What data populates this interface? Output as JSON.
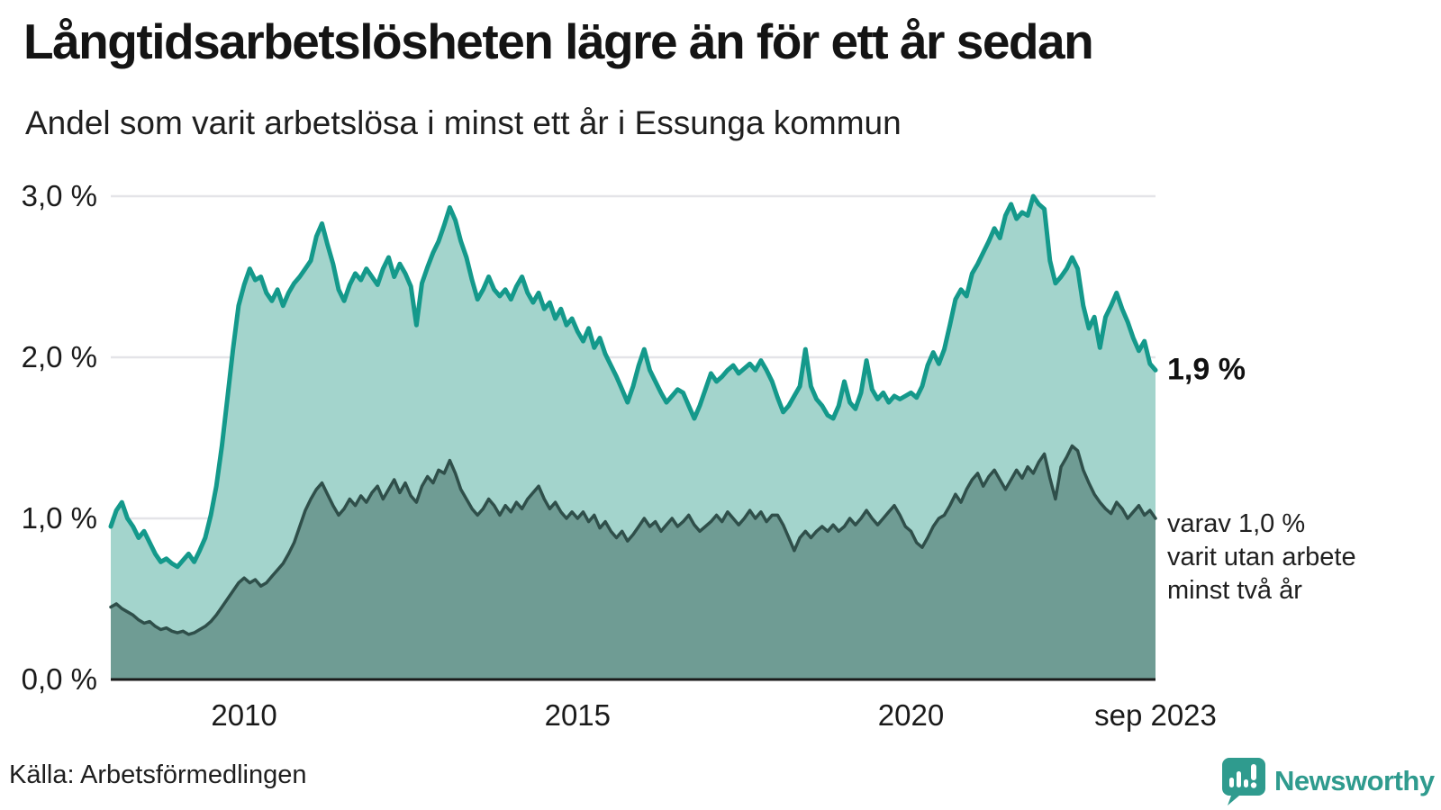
{
  "header": {
    "title": "Långtidsarbetslösheten lägre än för ett år sedan",
    "subtitle": "Andel som varit arbetslösa i minst ett år i Essunga kommun"
  },
  "chart_data": {
    "type": "area",
    "title": "Långtidsarbetslösheten lägre än för ett år sedan",
    "subtitle": "Andel som varit arbetslösa i minst ett år i Essunga kommun",
    "unit": "%",
    "frequency": "monthly",
    "x_start": "2008-01",
    "x_end": "2023-09",
    "x_start_year": 2008,
    "ylim": [
      0,
      3.2
    ],
    "grid": true,
    "colors": {
      "line_total": "#14998b",
      "fill_total": "#a3d4cc",
      "line_two_years": "#2f4f4a",
      "fill_two_years": "#6f9c94",
      "gridline": "#e4e4e8",
      "axis": "#1a1a1a"
    },
    "y_ticks": [
      {
        "label": "3,0 %",
        "value": 3.0
      },
      {
        "label": "2,0 %",
        "value": 2.0
      },
      {
        "label": "1,0 %",
        "value": 1.0
      },
      {
        "label": "0,0 %",
        "value": 0.0
      }
    ],
    "x_ticks": [
      {
        "label": "2010",
        "year": 2010.0
      },
      {
        "label": "2015",
        "year": 2015.0
      },
      {
        "label": "2020",
        "year": 2020.0
      },
      {
        "label": "sep 2023",
        "year": 2023.6667
      }
    ],
    "series": [
      {
        "name": "Andel arbetslösa minst ett år",
        "color": "#14998b",
        "fill": "#a3d4cc",
        "values": [
          0.95,
          1.05,
          1.1,
          1.0,
          0.95,
          0.88,
          0.92,
          0.85,
          0.78,
          0.73,
          0.75,
          0.72,
          0.7,
          0.74,
          0.78,
          0.73,
          0.8,
          0.88,
          1.02,
          1.2,
          1.45,
          1.75,
          2.05,
          2.32,
          2.45,
          2.55,
          2.48,
          2.5,
          2.4,
          2.35,
          2.42,
          2.32,
          2.4,
          2.46,
          2.5,
          2.55,
          2.6,
          2.75,
          2.83,
          2.7,
          2.58,
          2.42,
          2.35,
          2.45,
          2.52,
          2.48,
          2.55,
          2.5,
          2.45,
          2.55,
          2.62,
          2.5,
          2.58,
          2.52,
          2.44,
          2.2,
          2.46,
          2.56,
          2.65,
          2.72,
          2.82,
          2.93,
          2.85,
          2.72,
          2.62,
          2.48,
          2.36,
          2.42,
          2.5,
          2.42,
          2.38,
          2.42,
          2.36,
          2.44,
          2.5,
          2.4,
          2.34,
          2.4,
          2.3,
          2.34,
          2.24,
          2.3,
          2.2,
          2.24,
          2.16,
          2.1,
          2.18,
          2.06,
          2.12,
          2.02,
          1.95,
          1.88,
          1.8,
          1.72,
          1.82,
          1.95,
          2.05,
          1.92,
          1.85,
          1.78,
          1.72,
          1.76,
          1.8,
          1.78,
          1.7,
          1.62,
          1.7,
          1.8,
          1.9,
          1.85,
          1.88,
          1.92,
          1.95,
          1.9,
          1.93,
          1.96,
          1.92,
          1.98,
          1.92,
          1.85,
          1.75,
          1.66,
          1.7,
          1.76,
          1.82,
          2.05,
          1.82,
          1.74,
          1.7,
          1.64,
          1.62,
          1.7,
          1.85,
          1.72,
          1.68,
          1.78,
          1.98,
          1.8,
          1.74,
          1.78,
          1.72,
          1.76,
          1.74,
          1.76,
          1.78,
          1.75,
          1.82,
          1.95,
          2.03,
          1.96,
          2.05,
          2.2,
          2.36,
          2.42,
          2.38,
          2.52,
          2.58,
          2.65,
          2.72,
          2.8,
          2.74,
          2.88,
          2.95,
          2.86,
          2.9,
          2.88,
          3.0,
          2.95,
          2.92,
          2.6,
          2.46,
          2.5,
          2.55,
          2.62,
          2.55,
          2.32,
          2.18,
          2.25,
          2.06,
          2.25,
          2.32,
          2.4,
          2.3,
          2.22,
          2.12,
          2.04,
          2.1,
          1.96,
          1.92
        ]
      },
      {
        "name": "Andel arbetslösa minst två år",
        "color": "#2f4f4a",
        "fill": "#6f9c94",
        "values": [
          0.45,
          0.47,
          0.44,
          0.42,
          0.4,
          0.37,
          0.35,
          0.36,
          0.33,
          0.31,
          0.32,
          0.3,
          0.29,
          0.3,
          0.28,
          0.29,
          0.31,
          0.33,
          0.36,
          0.4,
          0.45,
          0.5,
          0.55,
          0.6,
          0.63,
          0.6,
          0.62,
          0.58,
          0.6,
          0.64,
          0.68,
          0.72,
          0.78,
          0.85,
          0.95,
          1.05,
          1.12,
          1.18,
          1.22,
          1.15,
          1.08,
          1.02,
          1.06,
          1.12,
          1.08,
          1.14,
          1.1,
          1.16,
          1.2,
          1.12,
          1.18,
          1.24,
          1.16,
          1.22,
          1.14,
          1.1,
          1.2,
          1.26,
          1.22,
          1.3,
          1.28,
          1.36,
          1.28,
          1.18,
          1.12,
          1.06,
          1.02,
          1.06,
          1.12,
          1.08,
          1.02,
          1.08,
          1.04,
          1.1,
          1.06,
          1.12,
          1.16,
          1.2,
          1.12,
          1.06,
          1.1,
          1.04,
          1.0,
          1.04,
          1.0,
          1.04,
          0.98,
          1.02,
          0.94,
          0.98,
          0.92,
          0.88,
          0.92,
          0.86,
          0.9,
          0.95,
          1.0,
          0.95,
          0.98,
          0.92,
          0.96,
          1.0,
          0.95,
          0.98,
          1.02,
          0.96,
          0.92,
          0.95,
          0.98,
          1.02,
          0.98,
          1.04,
          1.0,
          0.96,
          1.0,
          1.05,
          1.0,
          1.04,
          0.98,
          1.02,
          1.02,
          0.96,
          0.88,
          0.8,
          0.88,
          0.92,
          0.88,
          0.92,
          0.95,
          0.92,
          0.96,
          0.92,
          0.95,
          1.0,
          0.96,
          1.0,
          1.05,
          1.0,
          0.96,
          1.0,
          1.04,
          1.08,
          1.02,
          0.95,
          0.92,
          0.85,
          0.82,
          0.88,
          0.95,
          1.0,
          1.02,
          1.08,
          1.15,
          1.1,
          1.18,
          1.24,
          1.28,
          1.2,
          1.26,
          1.3,
          1.24,
          1.18,
          1.24,
          1.3,
          1.25,
          1.32,
          1.28,
          1.35,
          1.4,
          1.25,
          1.12,
          1.32,
          1.38,
          1.45,
          1.42,
          1.3,
          1.22,
          1.15,
          1.1,
          1.06,
          1.03,
          1.1,
          1.06,
          1.0,
          1.04,
          1.08,
          1.02,
          1.05,
          1.0
        ]
      }
    ],
    "annotations": [
      {
        "text": "1,9 %",
        "value": 1.92,
        "bold": true
      },
      {
        "lines": [
          "varav 1,0 %",
          "varit utan arbete",
          "minst två år"
        ],
        "value": 1.0
      }
    ]
  },
  "footer": {
    "source": "Källa: Arbetsförmedlingen"
  },
  "logo": {
    "name": "Newsworthy",
    "color": "#2f9b8e",
    "icon": "newsworthy-speech-bubble-chart-icon"
  }
}
